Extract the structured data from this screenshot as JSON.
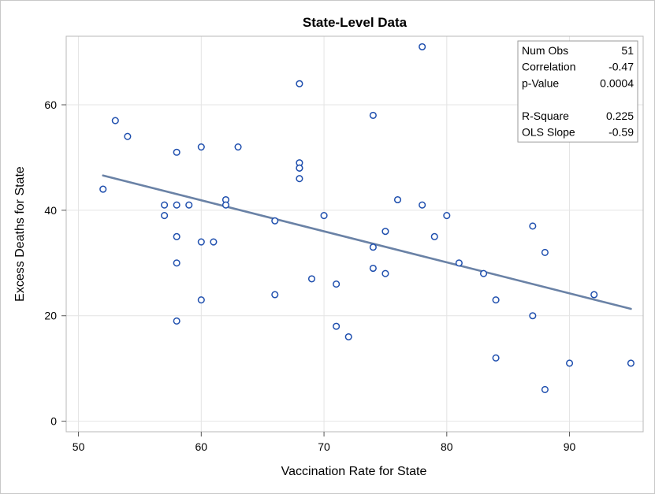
{
  "chart_data": {
    "type": "scatter",
    "title": "State-Level Data",
    "xlabel": "Vaccination Rate for State",
    "ylabel": "Excess Deaths for State",
    "xlim": [
      49,
      96
    ],
    "ylim": [
      -2,
      73
    ],
    "xticks": [
      50,
      60,
      70,
      80,
      90
    ],
    "yticks": [
      0,
      20,
      40,
      60
    ],
    "grid": true,
    "colors": {
      "marker": "#1f4fae",
      "fit_line": "#6a82a6",
      "grid": "#e4e4e4",
      "frame": "#b8b8b8"
    },
    "points": [
      {
        "x": 52,
        "y": 44
      },
      {
        "x": 53,
        "y": 57
      },
      {
        "x": 54,
        "y": 54
      },
      {
        "x": 57,
        "y": 41
      },
      {
        "x": 57,
        "y": 39
      },
      {
        "x": 58,
        "y": 51
      },
      {
        "x": 58,
        "y": 41
      },
      {
        "x": 58,
        "y": 35
      },
      {
        "x": 58,
        "y": 30
      },
      {
        "x": 58,
        "y": 19
      },
      {
        "x": 59,
        "y": 41
      },
      {
        "x": 60,
        "y": 52
      },
      {
        "x": 60,
        "y": 34
      },
      {
        "x": 60,
        "y": 23
      },
      {
        "x": 61,
        "y": 34
      },
      {
        "x": 62,
        "y": 42
      },
      {
        "x": 62,
        "y": 41
      },
      {
        "x": 63,
        "y": 52
      },
      {
        "x": 66,
        "y": 38
      },
      {
        "x": 66,
        "y": 24
      },
      {
        "x": 68,
        "y": 64
      },
      {
        "x": 68,
        "y": 49
      },
      {
        "x": 68,
        "y": 48
      },
      {
        "x": 68,
        "y": 48
      },
      {
        "x": 68,
        "y": 46
      },
      {
        "x": 69,
        "y": 27
      },
      {
        "x": 70,
        "y": 39
      },
      {
        "x": 71,
        "y": 26
      },
      {
        "x": 71,
        "y": 18
      },
      {
        "x": 72,
        "y": 16
      },
      {
        "x": 74,
        "y": 58
      },
      {
        "x": 74,
        "y": 33
      },
      {
        "x": 74,
        "y": 29
      },
      {
        "x": 75,
        "y": 36
      },
      {
        "x": 75,
        "y": 28
      },
      {
        "x": 76,
        "y": 42
      },
      {
        "x": 78,
        "y": 71
      },
      {
        "x": 78,
        "y": 41
      },
      {
        "x": 79,
        "y": 35
      },
      {
        "x": 80,
        "y": 39
      },
      {
        "x": 81,
        "y": 30
      },
      {
        "x": 83,
        "y": 28
      },
      {
        "x": 84,
        "y": 23
      },
      {
        "x": 84,
        "y": 12
      },
      {
        "x": 87,
        "y": 37
      },
      {
        "x": 87,
        "y": 20
      },
      {
        "x": 88,
        "y": 32
      },
      {
        "x": 88,
        "y": 6
      },
      {
        "x": 90,
        "y": 11
      },
      {
        "x": 92,
        "y": 24
      },
      {
        "x": 95,
        "y": 11
      }
    ],
    "fit_line": {
      "x": [
        52,
        95
      ],
      "y": [
        46.6,
        21.3
      ]
    },
    "stats": [
      {
        "label": "Num Obs",
        "value": "51"
      },
      {
        "label": "Correlation",
        "value": "-0.47"
      },
      {
        "label": "p-Value",
        "value": "0.0004"
      },
      {
        "label": "",
        "value": ""
      },
      {
        "label": "R-Square",
        "value": "0.225"
      },
      {
        "label": "OLS Slope",
        "value": "-0.59"
      }
    ]
  }
}
